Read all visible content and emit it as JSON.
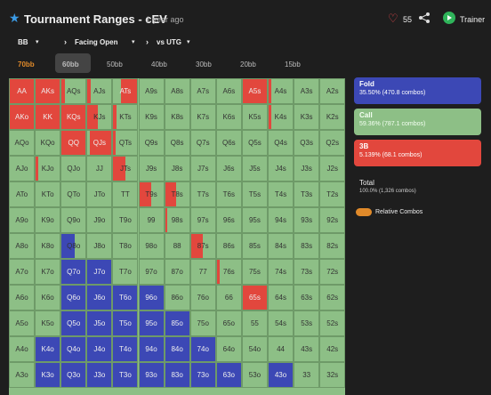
{
  "header": {
    "title": "Tournament Ranges - cEV",
    "time": "1 year ago",
    "likes": "55",
    "trainer": "Trainer"
  },
  "filters": [
    "BB",
    "Facing Open",
    "vs UTG"
  ],
  "tabs": [
    "70bb",
    "60bb",
    "50bb",
    "40bb",
    "30bb",
    "20bb",
    "15bb"
  ],
  "palette": {
    "g": "#8dbf86",
    "r": "#e2473d",
    "b": "#3c48b5"
  },
  "grid": [
    [
      [
        "AA",
        "r"
      ],
      [
        "AKs",
        "r"
      ],
      [
        "AQs",
        "g",
        "r",
        0.15
      ],
      [
        "AJs",
        "g",
        "r",
        0.15
      ],
      [
        "ATs",
        "r",
        "g",
        0.3
      ],
      [
        "A9s",
        "g"
      ],
      [
        "A8s",
        "g"
      ],
      [
        "A7s",
        "g"
      ],
      [
        "A6s",
        "g"
      ],
      [
        "A5s",
        "r"
      ],
      [
        "A4s",
        "g",
        "r",
        0.1
      ],
      [
        "A3s",
        "g"
      ],
      [
        "A2s",
        "g"
      ]
    ],
    [
      [
        "AKo",
        "r"
      ],
      [
        "KK",
        "r"
      ],
      [
        "KQs",
        "r"
      ],
      [
        "KJs",
        "g",
        "r",
        0.45
      ],
      [
        "KTs",
        "g",
        "r",
        0.12
      ],
      [
        "K9s",
        "g"
      ],
      [
        "K8s",
        "g"
      ],
      [
        "K7s",
        "g"
      ],
      [
        "K6s",
        "g"
      ],
      [
        "K5s",
        "g"
      ],
      [
        "K4s",
        "g",
        "r",
        0.1
      ],
      [
        "K3s",
        "g"
      ],
      [
        "K2s",
        "g"
      ]
    ],
    [
      [
        "AQo",
        "g"
      ],
      [
        "KQo",
        "g"
      ],
      [
        "QQ",
        "r"
      ],
      [
        "QJs",
        "r",
        "g",
        0.1
      ],
      [
        "QTs",
        "g",
        "r",
        0.1
      ],
      [
        "Q9s",
        "g"
      ],
      [
        "Q8s",
        "g"
      ],
      [
        "Q7s",
        "g"
      ],
      [
        "Q6s",
        "g"
      ],
      [
        "Q5s",
        "g"
      ],
      [
        "Q4s",
        "g"
      ],
      [
        "Q3s",
        "g"
      ],
      [
        "Q2s",
        "g"
      ]
    ],
    [
      [
        "AJo",
        "g"
      ],
      [
        "KJo",
        "g",
        "r",
        0.1
      ],
      [
        "QJo",
        "g"
      ],
      [
        "JJ",
        "g"
      ],
      [
        "JTs",
        "g",
        "r",
        0.5
      ],
      [
        "J9s",
        "g"
      ],
      [
        "J8s",
        "g"
      ],
      [
        "J7s",
        "g"
      ],
      [
        "J6s",
        "g"
      ],
      [
        "J5s",
        "g"
      ],
      [
        "J4s",
        "g"
      ],
      [
        "J3s",
        "g"
      ],
      [
        "J2s",
        "g"
      ]
    ],
    [
      [
        "ATo",
        "g"
      ],
      [
        "KTo",
        "g"
      ],
      [
        "QTo",
        "g"
      ],
      [
        "JTo",
        "g"
      ],
      [
        "TT",
        "g"
      ],
      [
        "T9s",
        "g",
        "r",
        0.5
      ],
      [
        "T8s",
        "g",
        "r",
        0.45
      ],
      [
        "T7s",
        "g"
      ],
      [
        "T6s",
        "g"
      ],
      [
        "T5s",
        "g"
      ],
      [
        "T4s",
        "g"
      ],
      [
        "T3s",
        "g"
      ],
      [
        "T2s",
        "g"
      ]
    ],
    [
      [
        "A9o",
        "g"
      ],
      [
        "K9o",
        "g"
      ],
      [
        "Q9o",
        "g"
      ],
      [
        "J9o",
        "g"
      ],
      [
        "T9o",
        "g"
      ],
      [
        "99",
        "g"
      ],
      [
        "98s",
        "g",
        "r",
        0.1
      ],
      [
        "97s",
        "g"
      ],
      [
        "96s",
        "g"
      ],
      [
        "95s",
        "g"
      ],
      [
        "94s",
        "g"
      ],
      [
        "93s",
        "g"
      ],
      [
        "92s",
        "g"
      ]
    ],
    [
      [
        "A8o",
        "g"
      ],
      [
        "K8o",
        "g"
      ],
      [
        "Q8o",
        "g",
        "b",
        0.55
      ],
      [
        "J8o",
        "g"
      ],
      [
        "T8o",
        "g"
      ],
      [
        "98o",
        "g"
      ],
      [
        "88",
        "g"
      ],
      [
        "87s",
        "g",
        "r",
        0.5
      ],
      [
        "86s",
        "g"
      ],
      [
        "85s",
        "g"
      ],
      [
        "84s",
        "g"
      ],
      [
        "83s",
        "g"
      ],
      [
        "82s",
        "g"
      ]
    ],
    [
      [
        "A7o",
        "g"
      ],
      [
        "K7o",
        "g"
      ],
      [
        "Q7o",
        "b"
      ],
      [
        "J7o",
        "b"
      ],
      [
        "T7o",
        "g"
      ],
      [
        "97o",
        "g"
      ],
      [
        "87o",
        "g"
      ],
      [
        "77",
        "g"
      ],
      [
        "76s",
        "g",
        "r",
        0.1
      ],
      [
        "75s",
        "g"
      ],
      [
        "74s",
        "g"
      ],
      [
        "73s",
        "g"
      ],
      [
        "72s",
        "g"
      ]
    ],
    [
      [
        "A6o",
        "g"
      ],
      [
        "K6o",
        "g"
      ],
      [
        "Q6o",
        "b"
      ],
      [
        "J6o",
        "b"
      ],
      [
        "T6o",
        "b"
      ],
      [
        "96o",
        "b"
      ],
      [
        "86o",
        "g"
      ],
      [
        "76o",
        "g"
      ],
      [
        "66",
        "g"
      ],
      [
        "65s",
        "r"
      ],
      [
        "64s",
        "g"
      ],
      [
        "63s",
        "g"
      ],
      [
        "62s",
        "g"
      ]
    ],
    [
      [
        "A5o",
        "g"
      ],
      [
        "K5o",
        "g"
      ],
      [
        "Q5o",
        "b"
      ],
      [
        "J5o",
        "b"
      ],
      [
        "T5o",
        "b"
      ],
      [
        "95o",
        "b"
      ],
      [
        "85o",
        "b"
      ],
      [
        "75o",
        "g"
      ],
      [
        "65o",
        "g"
      ],
      [
        "55",
        "g"
      ],
      [
        "54s",
        "g"
      ],
      [
        "53s",
        "g"
      ],
      [
        "52s",
        "g"
      ]
    ],
    [
      [
        "A4o",
        "g"
      ],
      [
        "K4o",
        "b"
      ],
      [
        "Q4o",
        "b"
      ],
      [
        "J4o",
        "b"
      ],
      [
        "T4o",
        "b"
      ],
      [
        "94o",
        "b"
      ],
      [
        "84o",
        "b"
      ],
      [
        "74o",
        "b"
      ],
      [
        "64o",
        "g"
      ],
      [
        "54o",
        "g"
      ],
      [
        "44",
        "g"
      ],
      [
        "43s",
        "g"
      ],
      [
        "42s",
        "g"
      ]
    ],
    [
      [
        "A3o",
        "g"
      ],
      [
        "K3o",
        "b"
      ],
      [
        "Q3o",
        "b"
      ],
      [
        "J3o",
        "b"
      ],
      [
        "T3o",
        "b"
      ],
      [
        "93o",
        "b"
      ],
      [
        "83o",
        "b"
      ],
      [
        "73o",
        "b"
      ],
      [
        "63o",
        "b"
      ],
      [
        "53o",
        "g"
      ],
      [
        "43o",
        "b"
      ],
      [
        "33",
        "g"
      ],
      [
        "32s",
        "g"
      ]
    ]
  ],
  "actions": [
    {
      "name": "Fold",
      "detail": "35.50% (470.8 combos)",
      "color": "#3c48b5"
    },
    {
      "name": "Call",
      "detail": "59.36% (787.1 combos)",
      "color": "#8dbf86"
    },
    {
      "name": "3B",
      "detail": "5.139% (68.1 combos)",
      "color": "#e2473d"
    }
  ],
  "total": {
    "label": "Total",
    "detail": "100.0% (1,326 combos)"
  },
  "toggle": "Relative Combos"
}
